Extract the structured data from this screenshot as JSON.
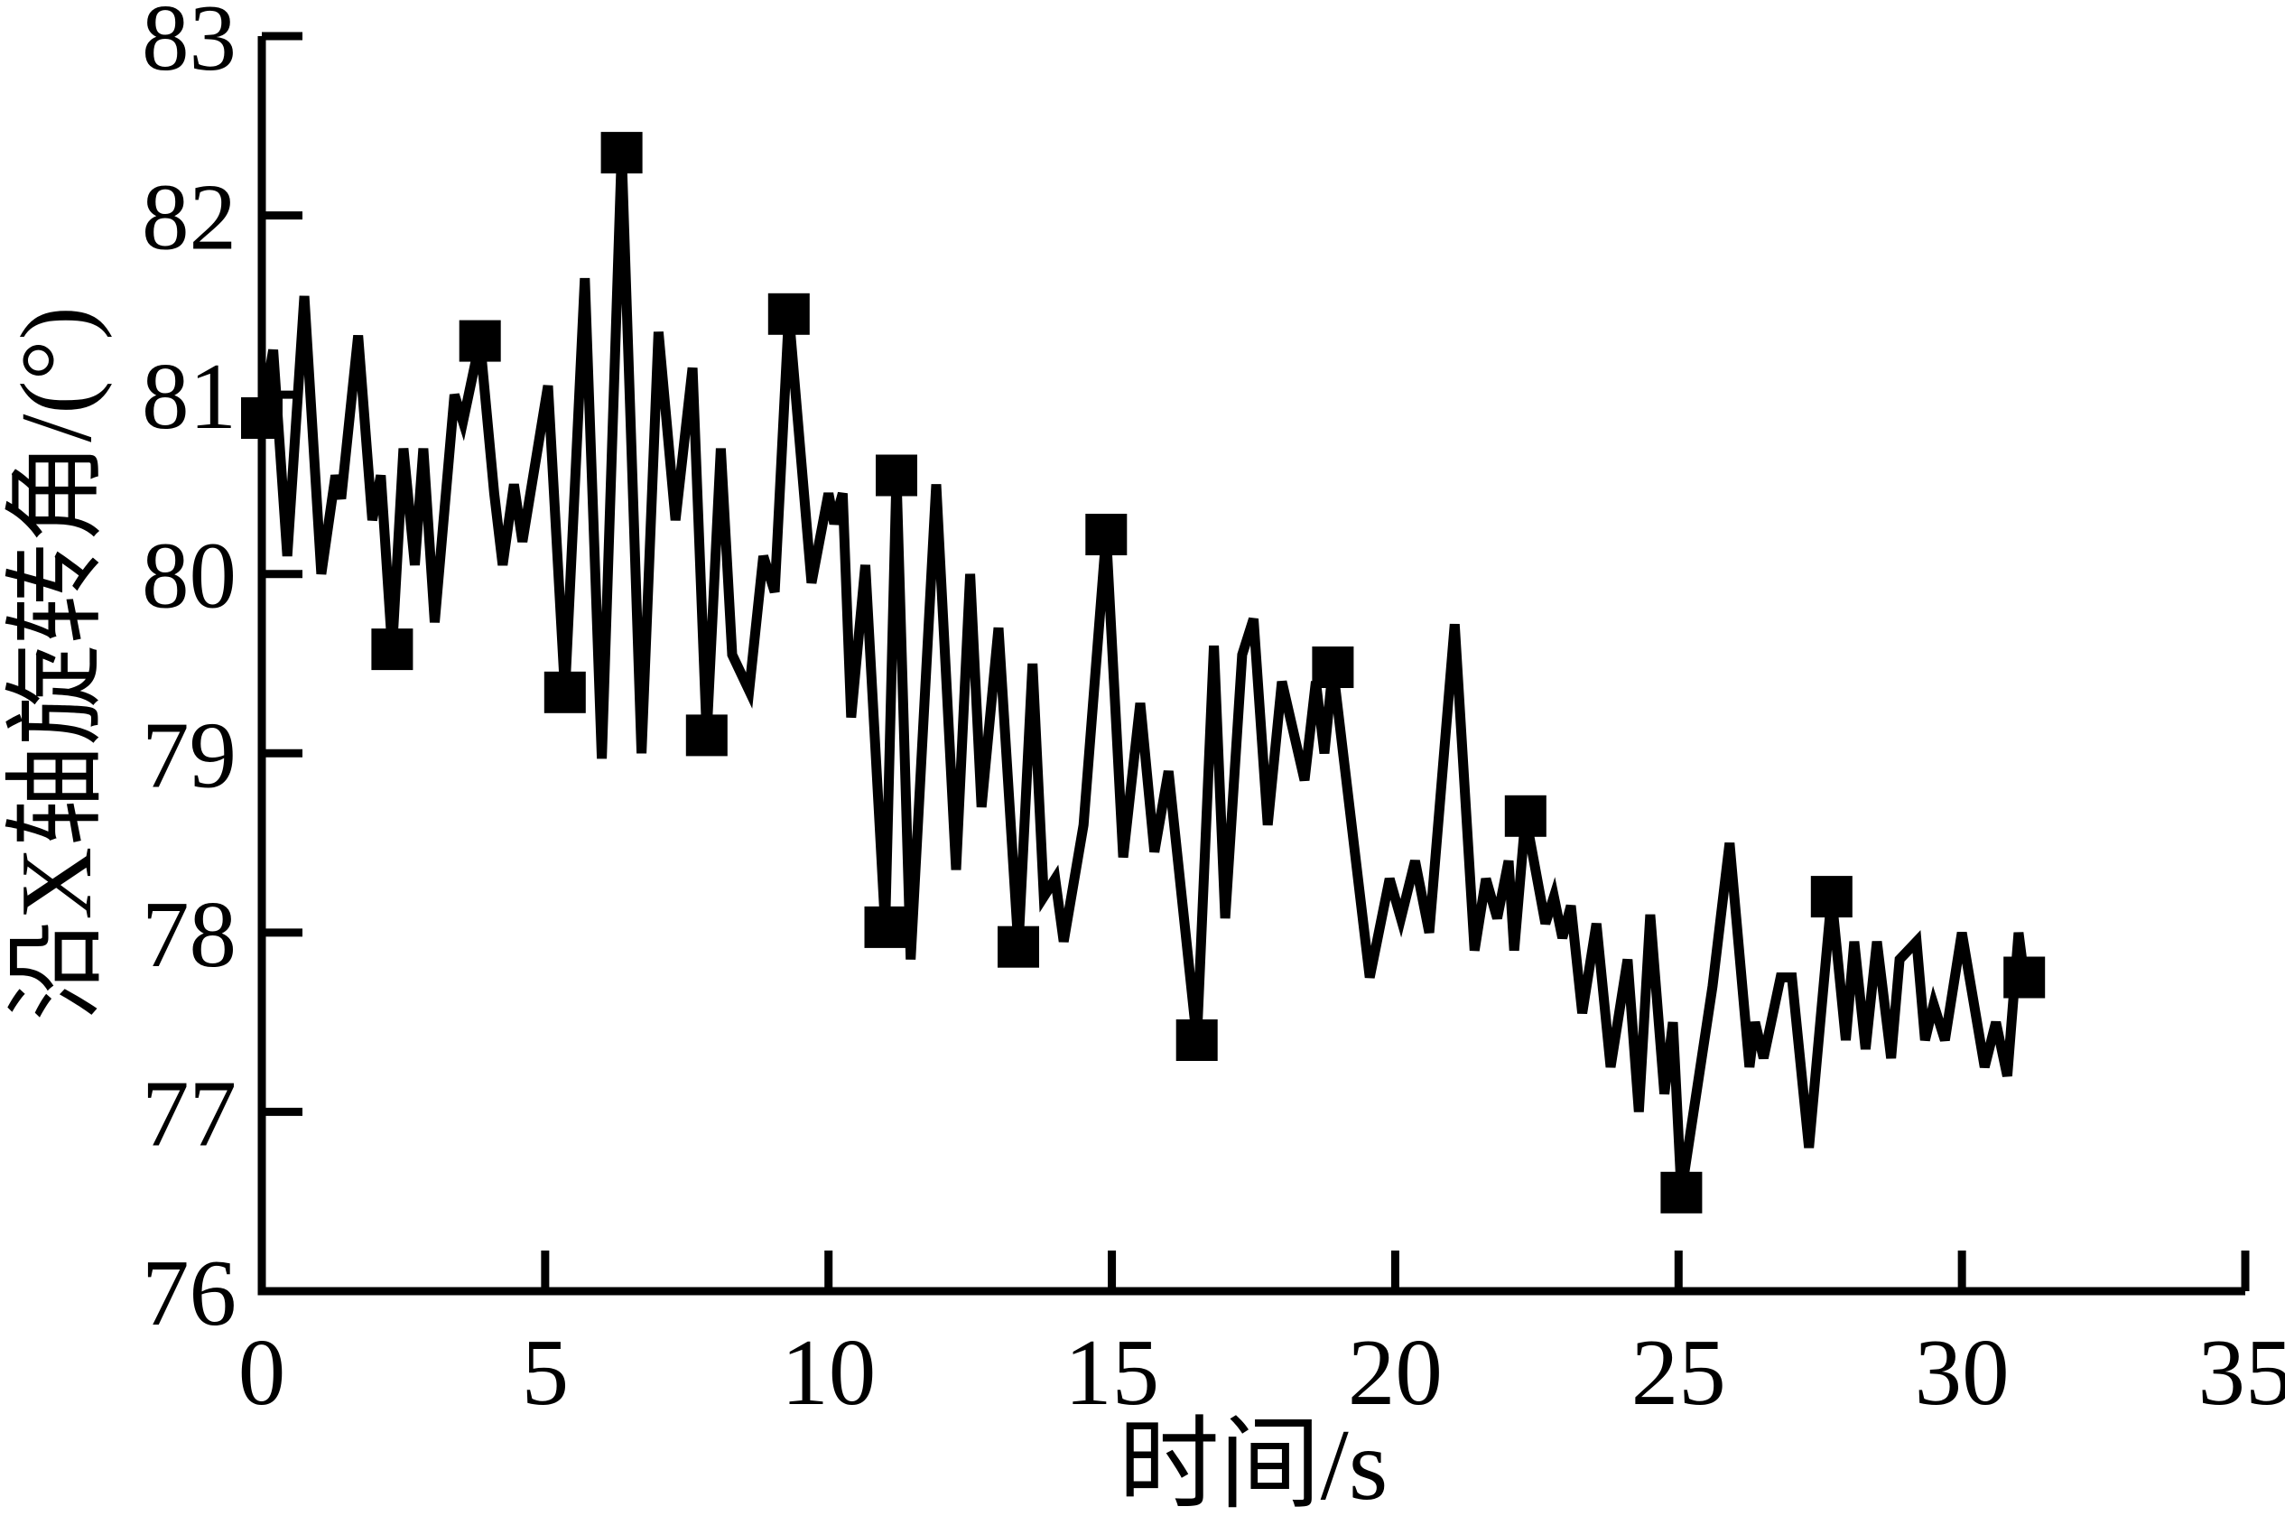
{
  "page": {
    "background_color": "#ffffff",
    "foreground_color": "#000000"
  },
  "chart_data": {
    "type": "line",
    "title": "",
    "xlabel": "时间/s",
    "ylabel": "沿X轴旋转角/(°)",
    "xlim": [
      0,
      35
    ],
    "ylim": [
      76,
      83
    ],
    "xticks": [
      0,
      5,
      10,
      15,
      20,
      25,
      30,
      35
    ],
    "yticks": [
      76,
      77,
      78,
      79,
      80,
      81,
      82,
      83
    ],
    "grid": false,
    "legend_position": "none",
    "line_color": "#000000",
    "marker": "square",
    "marker_color": "#000000",
    "x": [
      0,
      0.2,
      0.45,
      0.75,
      1.05,
      1.3,
      1.4,
      1.7,
      1.95,
      2.1,
      2.3,
      2.5,
      2.7,
      2.85,
      3.05,
      3.4,
      3.55,
      3.85,
      4.1,
      4.25,
      4.45,
      4.6,
      5.05,
      5.35,
      5.7,
      6.0,
      6.35,
      6.7,
      7.0,
      7.3,
      7.6,
      7.85,
      8.1,
      8.3,
      8.6,
      8.85,
      9.05,
      9.3,
      9.7,
      10.0,
      10.1,
      10.25,
      10.4,
      10.65,
      11.0,
      11.2,
      11.45,
      11.9,
      12.25,
      12.5,
      12.7,
      13.0,
      13.35,
      13.6,
      13.8,
      14.0,
      14.15,
      14.5,
      14.9,
      15.2,
      15.5,
      15.75,
      16.0,
      16.5,
      16.8,
      17.0,
      17.3,
      17.5,
      17.75,
      18.0,
      18.4,
      18.6,
      18.75,
      18.9,
      19.55,
      19.9,
      20.1,
      20.35,
      20.6,
      21.05,
      21.4,
      21.6,
      21.8,
      22.0,
      22.1,
      22.3,
      22.65,
      22.8,
      22.95,
      23.1,
      23.3,
      23.55,
      23.8,
      24.1,
      24.3,
      24.5,
      24.75,
      24.9,
      25.05,
      25.6,
      25.9,
      26.25,
      26.35,
      26.5,
      26.8,
      27.0,
      27.3,
      27.7,
      27.95,
      28.1,
      28.3,
      28.5,
      28.75,
      28.9,
      29.2,
      29.35,
      29.5,
      29.7,
      30.0,
      30.4,
      30.6,
      30.8,
      31.0,
      31.1
    ],
    "y": [
      80.87,
      81.25,
      80.1,
      81.55,
      80.0,
      80.55,
      80.42,
      81.33,
      80.3,
      80.55,
      79.58,
      80.7,
      80.05,
      80.7,
      79.73,
      81.0,
      80.85,
      81.3,
      80.45,
      80.05,
      80.5,
      80.18,
      81.05,
      79.34,
      81.65,
      78.97,
      82.35,
      79.0,
      81.35,
      80.3,
      81.15,
      79.1,
      80.7,
      79.55,
      79.35,
      80.1,
      79.9,
      81.45,
      79.95,
      80.45,
      80.28,
      80.45,
      79.2,
      80.05,
      78.03,
      80.55,
      77.85,
      80.5,
      78.35,
      80.0,
      78.7,
      79.7,
      77.92,
      79.5,
      78.2,
      78.3,
      77.95,
      78.6,
      80.22,
      78.42,
      79.28,
      78.45,
      78.9,
      77.4,
      79.6,
      78.08,
      79.55,
      79.75,
      78.6,
      79.4,
      78.85,
      79.4,
      79.0,
      79.48,
      77.75,
      78.3,
      78.08,
      78.4,
      78.0,
      79.72,
      77.9,
      78.3,
      78.08,
      78.4,
      77.9,
      78.65,
      78.05,
      78.2,
      77.97,
      78.15,
      77.55,
      78.05,
      77.25,
      77.85,
      77.0,
      78.1,
      77.1,
      77.5,
      76.55,
      77.7,
      78.5,
      77.25,
      77.5,
      77.3,
      77.75,
      77.75,
      76.8,
      78.2,
      77.4,
      77.95,
      77.35,
      77.95,
      77.3,
      77.85,
      77.95,
      77.4,
      77.6,
      77.4,
      78.0,
      77.25,
      77.5,
      77.2,
      78.0,
      77.75
    ],
    "marker_indices": [
      0,
      10,
      17,
      23,
      26,
      31,
      37,
      44,
      45,
      52,
      58,
      63,
      73,
      85,
      98,
      107,
      123
    ]
  }
}
